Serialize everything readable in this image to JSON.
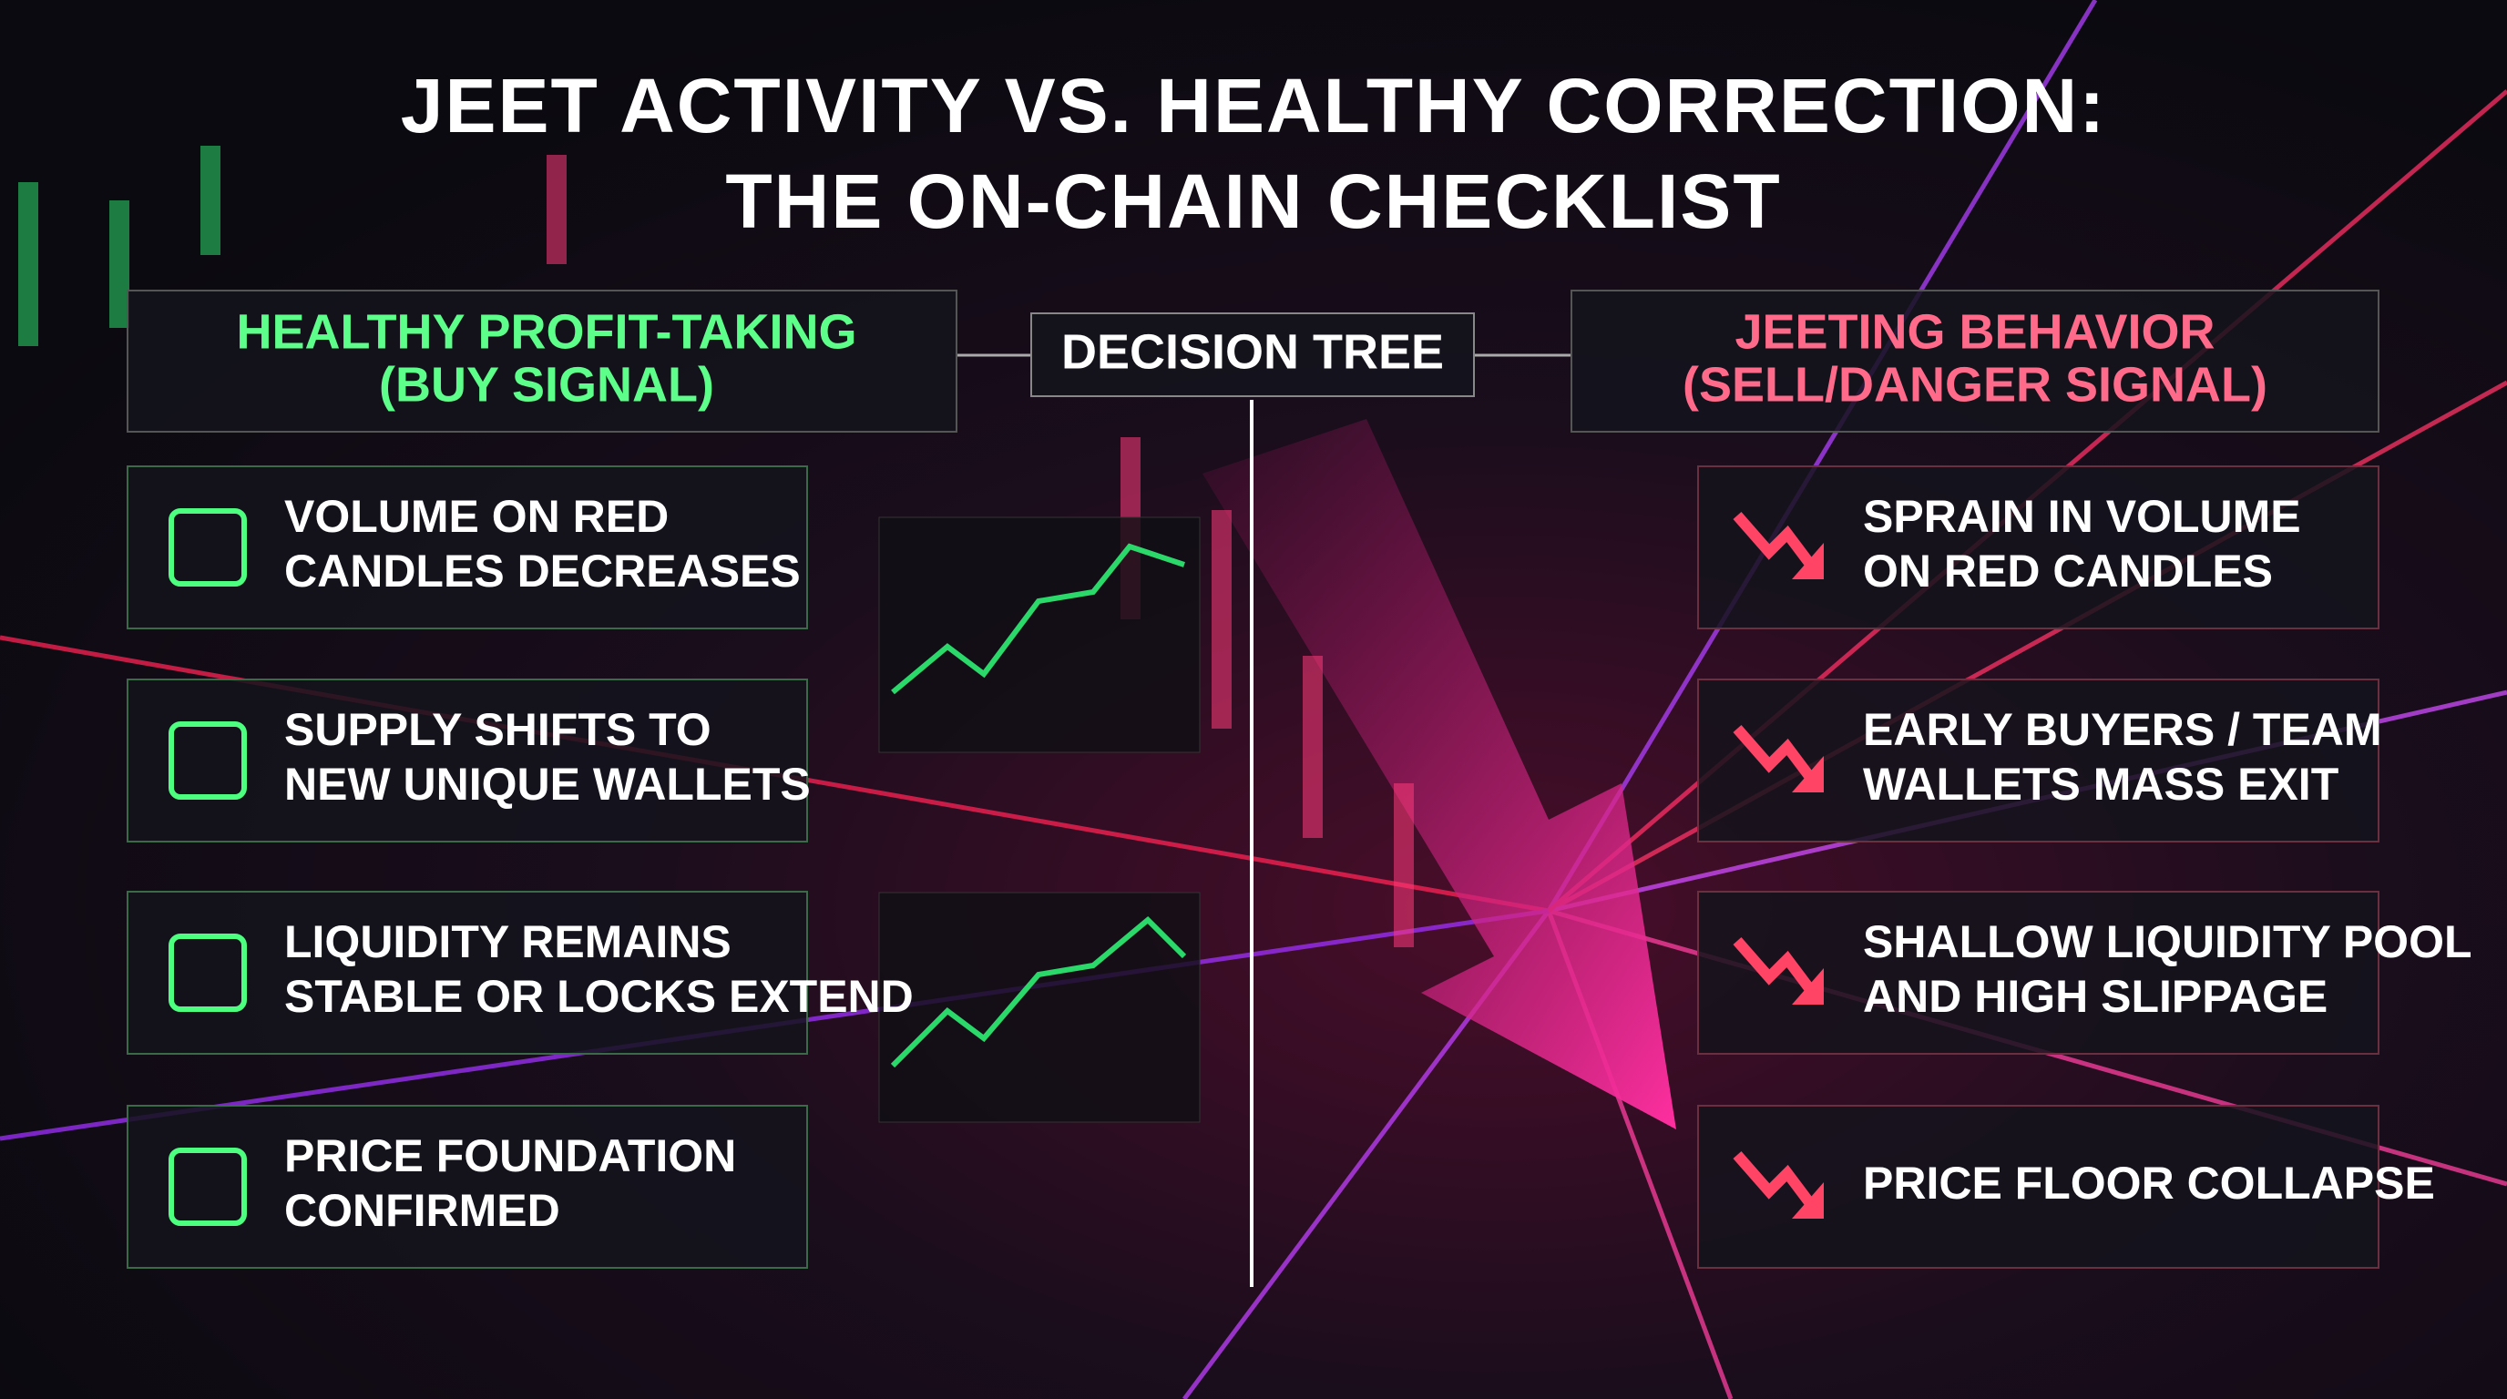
{
  "title": [
    "JEET ACTIVITY VS. HEALTHY CORRECTION:",
    "THE ON-CHAIN CHECKLIST"
  ],
  "center": "DECISION TREE",
  "healthy": {
    "heading": "HEALTHY PROFIT-TAKING",
    "subheading": "(BUY SIGNAL)",
    "items": [
      [
        "VOLUME ON RED",
        "CANDLES DECREASES"
      ],
      [
        "SUPPLY SHIFTS TO",
        "NEW UNIQUE WALLETS"
      ],
      [
        "LIQUIDITY REMAINS",
        "STABLE OR LOCKS EXTEND"
      ],
      [
        "PRICE FOUNDATION",
        "CONFIRMED"
      ]
    ]
  },
  "jeeting": {
    "heading": "JEETING BEHAVIOR",
    "subheading": "(SELL/DANGER SIGNAL)",
    "items": [
      [
        "SPRAIN IN VOLUME",
        "ON RED CANDLES"
      ],
      [
        "EARLY BUYERS / TEAM",
        "WALLETS MASS EXIT"
      ],
      [
        "SHALLOW LIQUIDITY POOL",
        "AND HIGH SLIPPAGE"
      ],
      [
        "PRICE FLOOR COLLAPSE"
      ]
    ]
  }
}
